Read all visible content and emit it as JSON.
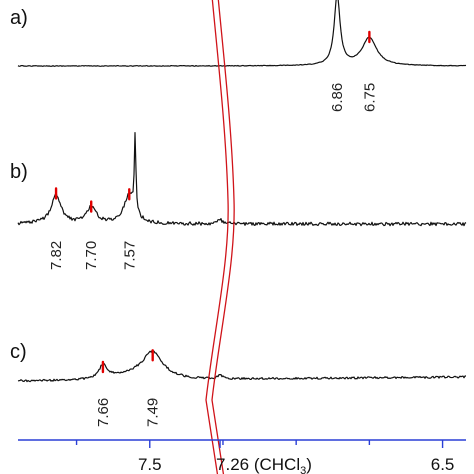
{
  "chart_data": {
    "type": "line",
    "title": "",
    "xlabel": "",
    "ylabel": "",
    "x_axis": {
      "direction": "descending",
      "ticks": [
        {
          "value": 7.5,
          "label": "7.5"
        },
        {
          "value": 7.26,
          "label": "7.26 (CHCl",
          "sub": "3",
          "tail": ")"
        },
        {
          "value": 6.5,
          "label": "6.5"
        }
      ],
      "minor_ticks": [
        7.75,
        7.25,
        7.0,
        6.75
      ]
    },
    "reference_peak": {
      "value": 7.26,
      "label": "CHCl3"
    },
    "panels": [
      {
        "id": "a",
        "letter": "a)",
        "peaks": [
          {
            "ppm": 6.86,
            "label": "6.86",
            "height": 1.0,
            "width": 0.012,
            "marker": false
          },
          {
            "ppm": 6.75,
            "label": "6.75",
            "height": 0.4,
            "width": 0.03,
            "marker": true
          }
        ]
      },
      {
        "id": "b",
        "letter": "b)",
        "peaks": [
          {
            "ppm": 7.82,
            "label": "7.82",
            "height": 0.36,
            "width": 0.02,
            "marker": true
          },
          {
            "ppm": 7.7,
            "label": "7.70",
            "height": 0.2,
            "width": 0.02,
            "marker": true
          },
          {
            "ppm": 7.57,
            "label": "7.57",
            "height": 0.35,
            "width": 0.022,
            "marker": true
          },
          {
            "ppm": 7.55,
            "label": "",
            "height": 0.95,
            "width": 0.003,
            "marker": false
          }
        ]
      },
      {
        "id": "c",
        "letter": "c)",
        "peaks": [
          {
            "ppm": 7.66,
            "label": "7.66",
            "height": 0.2,
            "width": 0.015,
            "marker": true
          },
          {
            "ppm": 7.49,
            "label": "7.49",
            "height": 0.38,
            "width": 0.04,
            "marker": true
          }
        ]
      }
    ]
  }
}
